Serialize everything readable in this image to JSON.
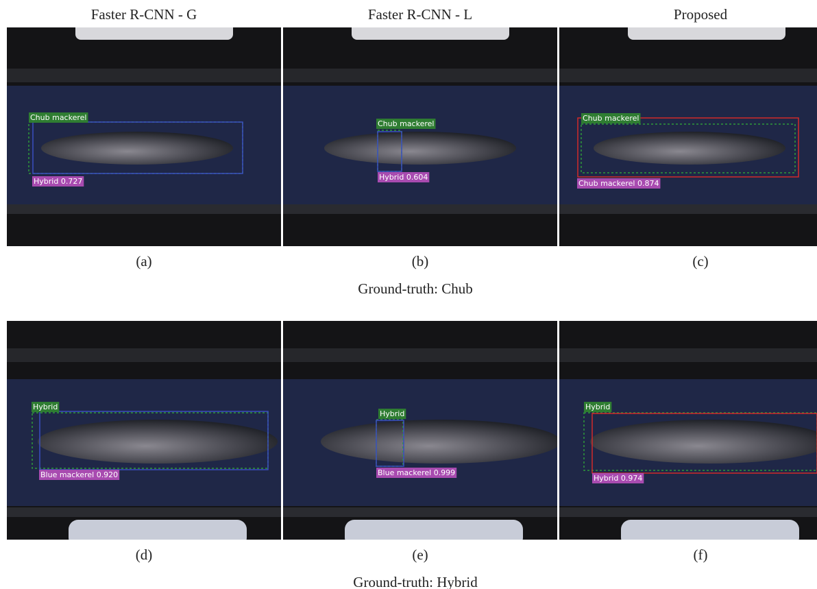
{
  "columns": [
    "Faster R-CNN - G",
    "Faster R-CNN - L",
    "Proposed"
  ],
  "rows": [
    {
      "caption": "Ground-truth: Chub",
      "panels": [
        {
          "label": "(a)",
          "ground_truth": "Chub mackerel",
          "prediction": "Hybrid 0.727"
        },
        {
          "label": "(b)",
          "ground_truth": "Chub mackerel",
          "prediction": "Hybrid 0.604"
        },
        {
          "label": "(c)",
          "ground_truth": "Chub mackerel",
          "prediction": "Chub mackerel 0.874"
        }
      ]
    },
    {
      "caption": "Ground-truth: Hybrid",
      "panels": [
        {
          "label": "(d)",
          "ground_truth": "Hybrid",
          "prediction": "Blue mackerel 0.920"
        },
        {
          "label": "(e)",
          "ground_truth": "Hybrid",
          "prediction": "Blue mackerel 0.999"
        },
        {
          "label": "(f)",
          "ground_truth": "Hybrid",
          "prediction": "Hybrid 0.974"
        }
      ]
    }
  ]
}
